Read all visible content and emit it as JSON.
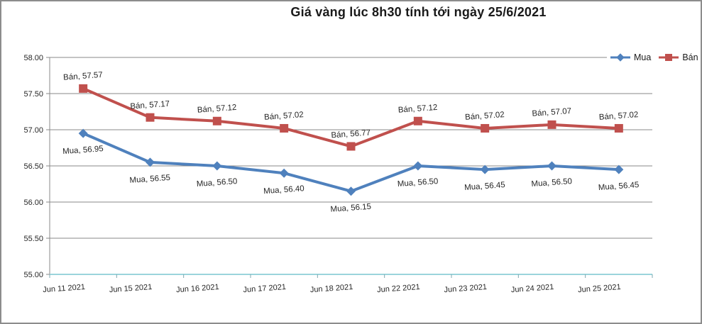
{
  "title": "Giá vàng lúc 8h30 tính tới ngày 25/6/2021",
  "legend": [
    {
      "label": "Mua",
      "color": "#4f81bd",
      "marker": "diamond"
    },
    {
      "label": "Bán",
      "color": "#c0504d",
      "marker": "square"
    }
  ],
  "chart_data": {
    "type": "line",
    "title": "Giá vàng lúc 8h30 tính tới ngày 25/6/2021",
    "categories": [
      "Jun 11 2021",
      "Jun 15 2021",
      "Jun 16 2021",
      "Jun 17 2021",
      "Jun 18 2021",
      "Jun 22 2021",
      "Jun 23 2021",
      "Jun 24 2021",
      "Jun 25 2021"
    ],
    "series": [
      {
        "name": "Bán",
        "color": "#c0504d",
        "marker": "square",
        "values": [
          57.57,
          57.17,
          57.12,
          57.02,
          56.77,
          57.12,
          57.02,
          57.07,
          57.02
        ],
        "label_position": "above"
      },
      {
        "name": "Mua",
        "color": "#4f81bd",
        "marker": "diamond",
        "values": [
          56.95,
          56.55,
          56.5,
          56.4,
          56.15,
          56.5,
          56.45,
          56.5,
          56.45
        ],
        "label_position": "below"
      }
    ],
    "ylim": [
      55.0,
      58.0
    ],
    "ytick_step": 0.5,
    "yticks": [
      "58.00",
      "57.50",
      "57.00",
      "56.50",
      "56.00",
      "55.50",
      "55.00"
    ],
    "grid": true,
    "legend_position": "top-right",
    "data_label_format": "{series}, {value}",
    "colors": {
      "gridline": "#8a8a8a",
      "y_axis": "#8a8a8a",
      "x_axis": "#9bd4dc",
      "x_tick": "#7fa8b0",
      "label_text": "#262626"
    }
  }
}
